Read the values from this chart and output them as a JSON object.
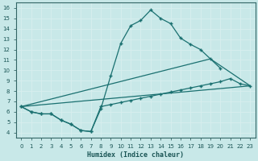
{
  "xlabel": "Humidex (Indice chaleur)",
  "bg_color": "#c8e8e8",
  "grid_color": "#b0d8d8",
  "line_color": "#1a7070",
  "xlim": [
    -0.5,
    23.5
  ],
  "ylim": [
    3.5,
    16.5
  ],
  "xticks": [
    0,
    1,
    2,
    3,
    4,
    5,
    6,
    7,
    8,
    9,
    10,
    11,
    12,
    13,
    14,
    15,
    16,
    17,
    18,
    19,
    20,
    21,
    22,
    23
  ],
  "yticks": [
    4,
    5,
    6,
    7,
    8,
    9,
    10,
    11,
    12,
    13,
    14,
    15,
    16
  ],
  "curve1_x": [
    0,
    1,
    2,
    3,
    4,
    5,
    6,
    7,
    8,
    9,
    10,
    11,
    12,
    13,
    14,
    15,
    16,
    17,
    18,
    19,
    20
  ],
  "curve1_y": [
    6.5,
    6.0,
    5.8,
    5.8,
    5.2,
    4.8,
    4.2,
    4.1,
    6.3,
    9.5,
    12.6,
    14.3,
    14.8,
    15.8,
    15.0,
    14.5,
    13.1,
    12.5,
    12.0,
    11.1,
    10.2
  ],
  "curve2_x": [
    0,
    1,
    2,
    3,
    4,
    5,
    6,
    7,
    8,
    9,
    10,
    11,
    12,
    13,
    14,
    15,
    16,
    17,
    18,
    19,
    20,
    21,
    22,
    23
  ],
  "curve2_y": [
    6.5,
    6.0,
    5.8,
    5.8,
    5.2,
    4.8,
    4.2,
    4.1,
    6.5,
    6.7,
    6.9,
    7.1,
    7.3,
    7.5,
    7.7,
    7.9,
    8.1,
    8.3,
    8.5,
    8.7,
    8.9,
    9.2,
    8.7,
    8.5
  ],
  "curve3_x": [
    0,
    23
  ],
  "curve3_y": [
    6.5,
    8.5
  ],
  "curve4_x": [
    0,
    19,
    23
  ],
  "curve4_y": [
    6.5,
    11.1,
    8.5
  ]
}
